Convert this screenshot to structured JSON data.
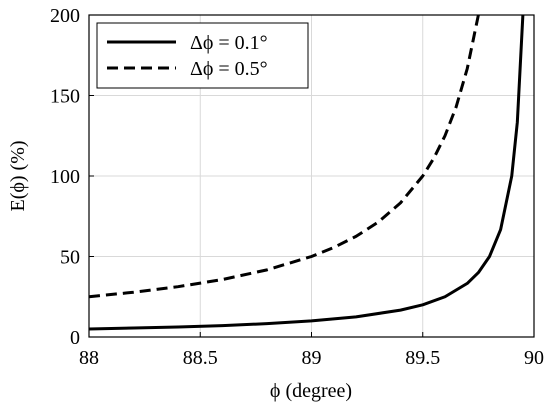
{
  "chart_data": {
    "type": "line",
    "xlabel": "ϕ (degree)",
    "ylabel": "E(ϕ) (%)",
    "xlim": [
      88,
      90
    ],
    "ylim": [
      0,
      200
    ],
    "xticks": [
      88,
      88.5,
      89,
      89.5,
      90
    ],
    "xtick_labels": [
      "88",
      "88.5",
      "89",
      "89.5",
      "90"
    ],
    "yticks": [
      0,
      50,
      100,
      150,
      200
    ],
    "ytick_labels": [
      "0",
      "50",
      "100",
      "150",
      "200"
    ],
    "grid": true,
    "legend_placement": "top-left",
    "series": [
      {
        "name": "Δϕ = 0.1°",
        "line_style": "solid",
        "color": "#000000",
        "x": [
          88.0,
          88.2,
          88.4,
          88.6,
          88.8,
          89.0,
          89.2,
          89.4,
          89.5,
          89.6,
          89.7,
          89.75,
          89.8,
          89.85,
          89.9,
          89.925,
          89.95
        ],
        "y": [
          5.0,
          5.6,
          6.25,
          7.1,
          8.3,
          10.0,
          12.5,
          16.7,
          20.0,
          25.0,
          33.3,
          40.0,
          50.0,
          66.7,
          100.0,
          133.3,
          200.0
        ]
      },
      {
        "name": "Δϕ = 0.5°",
        "line_style": "dashed",
        "color": "#000000",
        "x": [
          88.0,
          88.2,
          88.4,
          88.6,
          88.8,
          89.0,
          89.1,
          89.2,
          89.3,
          89.4,
          89.5,
          89.55,
          89.6,
          89.65,
          89.7,
          89.75
        ],
        "y": [
          25.0,
          27.8,
          31.25,
          35.7,
          41.7,
          50.0,
          55.6,
          62.5,
          71.4,
          83.3,
          100.0,
          111.1,
          125.0,
          142.9,
          166.7,
          200.0
        ]
      }
    ]
  }
}
